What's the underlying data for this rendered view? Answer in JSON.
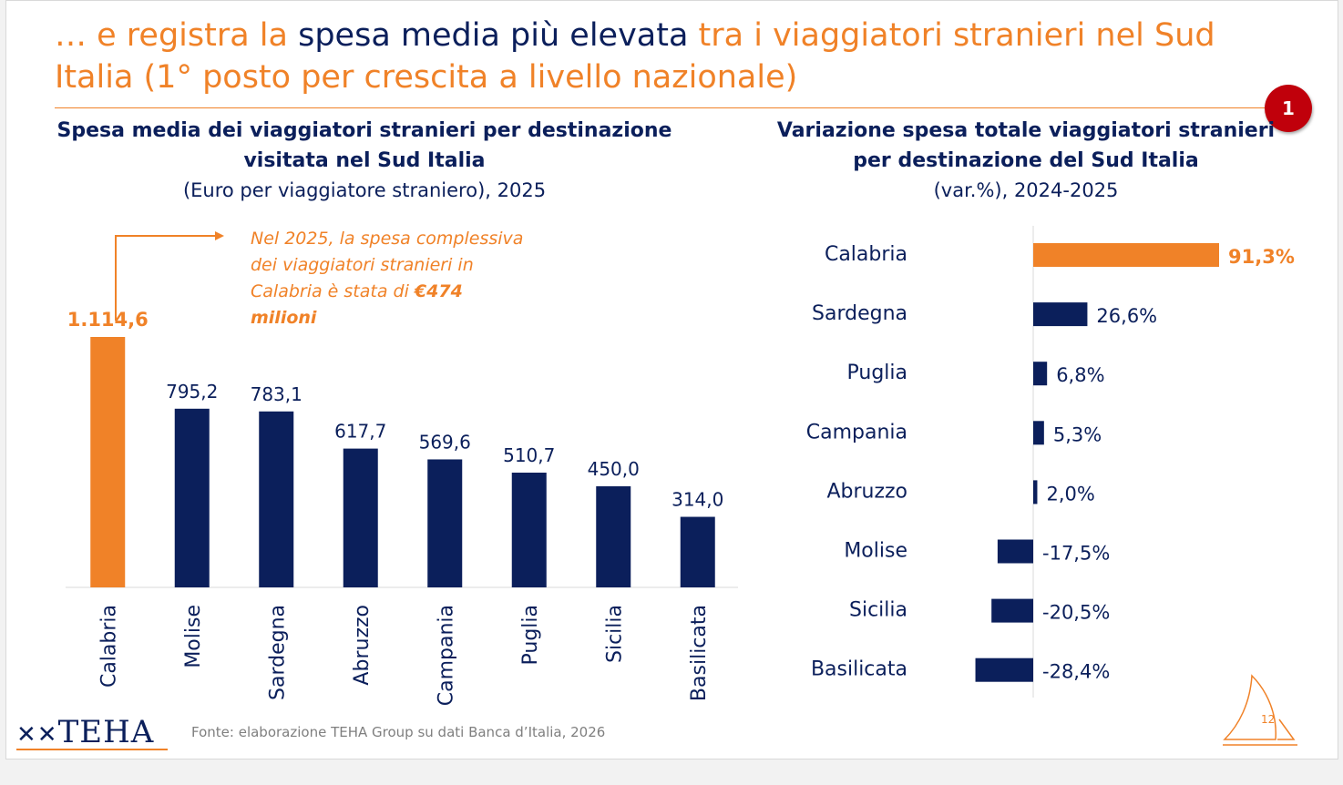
{
  "header": {
    "title_part1": "… e registra la ",
    "title_part2": "spesa media più elevata",
    "title_part3": " tra i viaggiatori stranieri nel Sud Italia (1° posto per crescita a livello nazionale)",
    "badge": "1"
  },
  "left_chart_title": {
    "line1": "Spesa media dei viaggiatori stranieri per destinazione",
    "line2": "visitata nel Sud Italia",
    "subtitle": "(Euro per viaggiatore straniero), 2025"
  },
  "right_chart_title": {
    "line1": "Variazione spesa totale viaggiatori stranieri",
    "line2": "per destinazione del Sud Italia",
    "subtitle": "(var.%), 2024-2025"
  },
  "callout": {
    "text": "Nel 2025, la spesa complessiva dei viaggiatori stranieri in Calabria è stata di ",
    "highlight": "€474 milioni"
  },
  "chart_data": [
    {
      "type": "bar",
      "title": "Spesa media dei viaggiatori stranieri per destinazione visitata nel Sud Italia",
      "subtitle": "(Euro per viaggiatore straniero), 2025",
      "categories": [
        "Calabria",
        "Molise",
        "Sardegna",
        "Abruzzo",
        "Campania",
        "Puglia",
        "Sicilia",
        "Basilicata"
      ],
      "values": [
        1114.6,
        795.2,
        783.1,
        617.7,
        569.6,
        510.7,
        450.0,
        314.0
      ],
      "value_labels": [
        "1.114,6",
        "795,2",
        "783,1",
        "617,7",
        "569,6",
        "510,7",
        "450,0",
        "314,0"
      ],
      "highlight_index": 0,
      "colors": {
        "highlight": "#f08228",
        "default": "#0b1f5b"
      },
      "ylim": [
        0,
        1114.6
      ],
      "grid": false
    },
    {
      "type": "bar",
      "orientation": "horizontal",
      "title": "Variazione spesa totale viaggiatori stranieri per destinazione del Sud Italia",
      "subtitle": "(var.%), 2024-2025",
      "categories": [
        "Calabria",
        "Sardegna",
        "Puglia",
        "Campania",
        "Abruzzo",
        "Molise",
        "Sicilia",
        "Basilicata"
      ],
      "values": [
        91.3,
        26.6,
        6.8,
        5.3,
        2.0,
        -17.5,
        -20.5,
        -28.4
      ],
      "value_labels": [
        "91,3%",
        "26,6%",
        "6,8%",
        "5,3%",
        "2,0%",
        "-17,5%",
        "-20,5%",
        "-28,4%"
      ],
      "highlight_index": 0,
      "colors": {
        "highlight": "#f08228",
        "default": "#0b1f5b"
      },
      "xlim": [
        -28.4,
        91.3
      ],
      "grid": false
    }
  ],
  "footer": {
    "logo": "TEHA",
    "source": "Fonte: elaborazione TEHA Group su dati Banca d’Italia, 2026",
    "page": "12"
  }
}
